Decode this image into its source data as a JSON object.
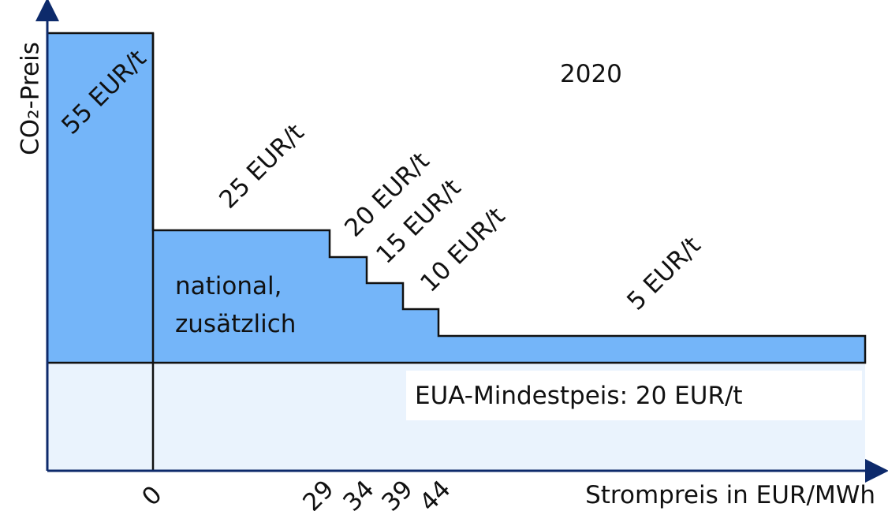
{
  "year": "2020",
  "y_axis_label": "CO₂-Preis",
  "x_axis_label": "Strompreis in EUR/MWh",
  "steps": [
    "55 EUR/t",
    "25 EUR/t",
    "20 EUR/t",
    "15 EUR/t",
    "10 EUR/t",
    "5 EUR/t"
  ],
  "region_label": [
    "national,",
    "zusätzlich"
  ],
  "base_label": "EUA-Mindestpeis: 20 EUR/t",
  "x_ticks": [
    "0",
    "29",
    "34",
    "39",
    "44"
  ]
}
